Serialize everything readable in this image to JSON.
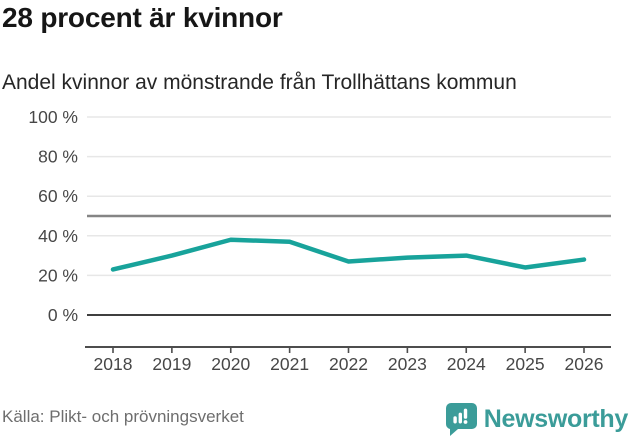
{
  "header": {
    "title": "28 procent är kvinnor",
    "subtitle": "Andel kvinnor av mönstrande från Trollhättans kommun"
  },
  "chart_data": {
    "type": "line",
    "title": "28 procent är kvinnor",
    "subtitle": "Andel kvinnor av mönstrande från Trollhättans kommun",
    "x": [
      "2018",
      "2019",
      "2020",
      "2021",
      "2022",
      "2023",
      "2024",
      "2025",
      "2026"
    ],
    "series": [
      {
        "name": "Andel kvinnor av mönstrande (%)",
        "values": [
          23,
          30,
          38,
          37,
          27,
          29,
          30,
          24,
          28
        ]
      }
    ],
    "unit": "%",
    "ylim": [
      0,
      100
    ],
    "yticks": [
      0,
      20,
      40,
      60,
      80,
      100
    ],
    "ytick_labels": [
      "0 %",
      "20 %",
      "40 %",
      "60 %",
      "80 %",
      "100 %"
    ],
    "reference_line": 50,
    "grid": true,
    "legend": "none"
  },
  "footer": {
    "source": "Källa: Plikt- och prövningsverket",
    "brand_name": "Newsworthy"
  },
  "colors": {
    "line": "#18a39b",
    "grid": "#e7e7e7",
    "reference": "#858585",
    "baseline": "#3f3f3f",
    "axis": "#4d4d4d",
    "tick_text": "#474747",
    "brand": "#3b9c99"
  }
}
